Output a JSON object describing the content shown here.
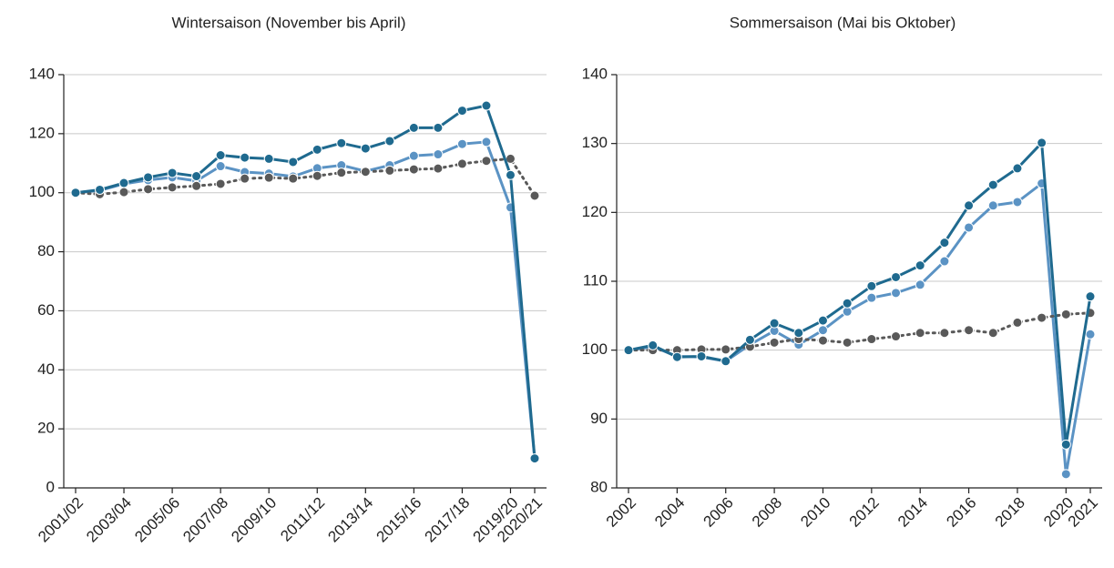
{
  "chart_data": [
    {
      "type": "line",
      "title": "Wintersaison (November bis April)",
      "categories": [
        "2001/02",
        null,
        "2003/04",
        null,
        "2005/06",
        null,
        "2007/08",
        null,
        "2009/10",
        null,
        "2011/12",
        null,
        "2013/14",
        null,
        "2015/16",
        null,
        "2017/18",
        null,
        "2019/20",
        "2020/21"
      ],
      "series": [
        {
          "color": "#5b93c4",
          "values": [
            100,
            100.8,
            103,
            104.3,
            105.2,
            104,
            109,
            107,
            106.5,
            105.5,
            108.3,
            109.3,
            107.3,
            109.3,
            112.5,
            113,
            116.5,
            117.2,
            95,
            10
          ]
        },
        {
          "color": "#595959",
          "linestyle": "dotted",
          "values": [
            100,
            99.5,
            100.2,
            101.2,
            101.8,
            102.3,
            103,
            104.8,
            105.1,
            104.8,
            105.7,
            106.8,
            107.1,
            107.5,
            107.9,
            108.2,
            109.8,
            110.8,
            111.5,
            99
          ]
        },
        {
          "color": "#1f6a8f",
          "values": [
            100,
            101,
            103.3,
            105.2,
            106.7,
            105.6,
            112.7,
            111.9,
            111.5,
            110.4,
            114.6,
            116.8,
            115,
            117.5,
            122,
            122,
            127.8,
            129.5,
            106,
            10
          ]
        }
      ],
      "ylim": [
        0,
        140
      ],
      "yticks": [
        0,
        20,
        40,
        60,
        80,
        100,
        120,
        140
      ],
      "grid": true
    },
    {
      "type": "line",
      "title": "Sommersaison (Mai bis Oktober)",
      "x": [
        2002,
        2003,
        2004,
        2005,
        2006,
        2007,
        2008,
        2009,
        2010,
        2011,
        2012,
        2013,
        2014,
        2015,
        2016,
        2017,
        2018,
        2019,
        2020,
        2021
      ],
      "series": [
        {
          "color": "#5b93c4",
          "values": [
            100,
            100.5,
            99.1,
            99,
            98.4,
            100.8,
            102.8,
            100.8,
            102.9,
            105.6,
            107.6,
            108.3,
            109.5,
            112.9,
            117.8,
            121,
            121.5,
            124.2,
            82,
            102.3
          ]
        },
        {
          "color": "#595959",
          "linestyle": "dotted",
          "values": [
            100,
            100,
            100,
            100.1,
            100.1,
            100.5,
            101.1,
            101.6,
            101.4,
            101.1,
            101.6,
            102,
            102.5,
            102.5,
            102.9,
            102.5,
            104,
            104.7,
            105.2,
            105.4
          ]
        },
        {
          "color": "#1f6a8f",
          "values": [
            100,
            100.7,
            99,
            99.1,
            98.4,
            101.5,
            103.9,
            102.5,
            104.3,
            106.8,
            109.3,
            110.6,
            112.3,
            115.6,
            121,
            124,
            126.4,
            130.1,
            86.3,
            107.8
          ]
        }
      ],
      "xlim": [
        2002,
        2021
      ],
      "xticks": [
        2002,
        2004,
        2006,
        2008,
        2010,
        2012,
        2014,
        2016,
        2018,
        2020,
        2021
      ],
      "ylim": [
        80,
        140
      ],
      "yticks": [
        80,
        90,
        100,
        110,
        120,
        130,
        140
      ],
      "grid": true
    }
  ]
}
